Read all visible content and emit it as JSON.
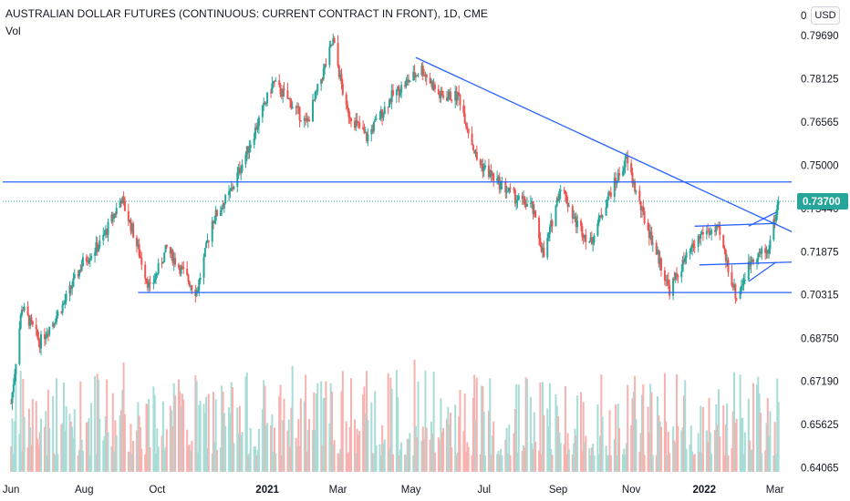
{
  "header": {
    "title": "AUSTRALIAN DOLLAR FUTURES (CONTINUOUS: CURRENT CONTRACT IN FRONT), 1D, CME",
    "volume_label": "Vol",
    "currency": "USD",
    "axis_top_glyph": "0"
  },
  "colors": {
    "up": "#26a69a",
    "down": "#ef5350",
    "volume_up": "#a8dcd6",
    "volume_down": "#f7b2b0",
    "trendline": "#2962ff",
    "last_price": "#26a69a"
  },
  "chart_data": {
    "type": "candlestick",
    "title": "AUSTRALIAN DOLLAR FUTURES (CONTINUOUS: CURRENT CONTRACT IN FRONT), 1D, CME",
    "x_tick_labels": [
      "Jun",
      "Aug",
      "Oct",
      "2021",
      "Mar",
      "May",
      "Jul",
      "Sep",
      "Nov",
      "2022",
      "Mar"
    ],
    "y_tick_labels": [
      "0.79690",
      "0.78125",
      "0.76565",
      "0.75000",
      "0.73440",
      "0.71875",
      "0.70315",
      "0.68750",
      "0.67190",
      "0.65625",
      "0.64065"
    ],
    "y_range": [
      0.6385,
      0.8065
    ],
    "grid": false,
    "last_price": 0.737,
    "last_price_label": "0.73700",
    "price_path": [
      [
        "2020-06-01",
        0.664
      ],
      [
        "2020-06-10",
        0.699
      ],
      [
        "2020-06-25",
        0.686
      ],
      [
        "2020-07-15",
        0.7
      ],
      [
        "2020-07-31",
        0.715
      ],
      [
        "2020-08-15",
        0.722
      ],
      [
        "2020-09-01",
        0.738
      ],
      [
        "2020-09-10",
        0.727
      ],
      [
        "2020-09-25",
        0.705
      ],
      [
        "2020-10-09",
        0.72
      ],
      [
        "2020-10-20",
        0.713
      ],
      [
        "2020-11-03",
        0.704
      ],
      [
        "2020-11-16",
        0.73
      ],
      [
        "2020-12-01",
        0.74
      ],
      [
        "2020-12-15",
        0.755
      ],
      [
        "2021-01-06",
        0.78
      ],
      [
        "2021-01-20",
        0.773
      ],
      [
        "2021-02-03",
        0.765
      ],
      [
        "2021-02-25",
        0.795
      ],
      [
        "2021-03-08",
        0.77
      ],
      [
        "2021-03-25",
        0.76
      ],
      [
        "2021-04-15",
        0.775
      ],
      [
        "2021-05-10",
        0.785
      ],
      [
        "2021-05-25",
        0.775
      ],
      [
        "2021-06-10",
        0.775
      ],
      [
        "2021-06-25",
        0.752
      ],
      [
        "2021-07-10",
        0.745
      ],
      [
        "2021-07-28",
        0.738
      ],
      [
        "2021-08-10",
        0.735
      ],
      [
        "2021-08-20",
        0.717
      ],
      [
        "2021-09-03",
        0.743
      ],
      [
        "2021-09-15",
        0.73
      ],
      [
        "2021-09-28",
        0.722
      ],
      [
        "2021-10-12",
        0.738
      ],
      [
        "2021-10-28",
        0.752
      ],
      [
        "2021-11-10",
        0.733
      ],
      [
        "2021-11-25",
        0.715
      ],
      [
        "2021-12-03",
        0.705
      ],
      [
        "2021-12-15",
        0.715
      ],
      [
        "2021-12-31",
        0.726
      ],
      [
        "2022-01-13",
        0.726
      ],
      [
        "2022-01-28",
        0.702
      ],
      [
        "2022-02-10",
        0.717
      ],
      [
        "2022-02-23",
        0.719
      ],
      [
        "2022-03-04",
        0.737
      ]
    ],
    "trendlines": [
      {
        "from": [
          "2020-05-25",
          0.744
        ],
        "to": [
          "2022-03-15",
          0.744
        ]
      },
      {
        "from": [
          "2020-09-15",
          0.704
        ],
        "to": [
          "2022-03-15",
          0.704
        ]
      },
      {
        "from": [
          "2021-05-05",
          0.789
        ],
        "to": [
          "2022-03-15",
          0.726
        ]
      },
      {
        "from": [
          "2021-12-24",
          0.728
        ],
        "to": [
          "2022-03-02",
          0.729
        ]
      },
      {
        "from": [
          "2021-12-28",
          0.714
        ],
        "to": [
          "2022-03-15",
          0.715
        ]
      },
      {
        "from": [
          "2022-02-07",
          0.708
        ],
        "to": [
          "2022-03-02",
          0.715
        ]
      },
      {
        "from": [
          "2022-02-07",
          0.728
        ],
        "to": [
          "2022-03-02",
          0.733
        ]
      }
    ],
    "x_range": [
      "2020-05-25",
      "2022-03-18"
    ]
  }
}
